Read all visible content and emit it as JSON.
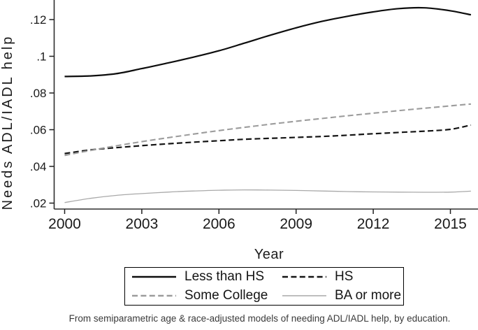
{
  "figure": {
    "caption": "From semiparametric age & race-adjusted models of needing ADL/IADL help, by education."
  },
  "chart_data": {
    "type": "line",
    "title": "",
    "xlabel": "Year",
    "ylabel": "Needs ADL/IADL help",
    "x_ticks": {
      "values": [
        2000,
        2003,
        2006,
        2009,
        2012,
        2015
      ],
      "labels": [
        "2000",
        "2003",
        "2006",
        "2009",
        "2012",
        "2015"
      ]
    },
    "y_ticks": {
      "values": [
        0.02,
        0.04,
        0.06,
        0.08,
        0.1,
        0.12
      ],
      "labels": [
        ".02",
        ".04",
        ".06",
        ".08",
        ".1",
        ".12"
      ]
    },
    "xlim": [
      1999.6,
      2016.1
    ],
    "ylim": [
      0.0166,
      0.1307
    ],
    "grid": false,
    "legend_position": "bottom-center",
    "legend_columns": 2,
    "axis_color": "#2e2e2e",
    "x": [
      2000,
      2001,
      2002,
      2003,
      2004,
      2005,
      2006,
      2007,
      2008,
      2009,
      2010,
      2011,
      2012,
      2013,
      2014,
      2015,
      2015.8
    ],
    "series": [
      {
        "name": "Less than HS",
        "color": "#0d0d0d",
        "dash": "",
        "width": 2.2,
        "values": [
          0.089,
          0.0893,
          0.0905,
          0.0933,
          0.0963,
          0.0995,
          0.103,
          0.1072,
          0.1115,
          0.1155,
          0.119,
          0.1218,
          0.1242,
          0.126,
          0.1264,
          0.1248,
          0.1226
        ]
      },
      {
        "name": "HS",
        "color": "#141414",
        "dash": "8 4.4",
        "width": 2.2,
        "values": [
          0.047,
          0.049,
          0.0502,
          0.0513,
          0.0523,
          0.0532,
          0.054,
          0.0548,
          0.0553,
          0.0558,
          0.0563,
          0.057,
          0.0578,
          0.0585,
          0.0592,
          0.0602,
          0.0625
        ]
      },
      {
        "name": "Some College",
        "color": "#9c9c9c",
        "dash": "8 4.4",
        "width": 2.1,
        "values": [
          0.046,
          0.0487,
          0.0512,
          0.0535,
          0.0556,
          0.0576,
          0.0595,
          0.0613,
          0.063,
          0.0646,
          0.0661,
          0.0676,
          0.069,
          0.0704,
          0.0717,
          0.073,
          0.074
        ]
      },
      {
        "name": "BA or more",
        "color": "#a9a9a9",
        "dash": "",
        "width": 1.3,
        "values": [
          0.0203,
          0.0226,
          0.0242,
          0.0252,
          0.026,
          0.0266,
          0.027,
          0.0272,
          0.0271,
          0.0269,
          0.0266,
          0.0263,
          0.0261,
          0.026,
          0.0259,
          0.026,
          0.0265
        ]
      }
    ]
  }
}
